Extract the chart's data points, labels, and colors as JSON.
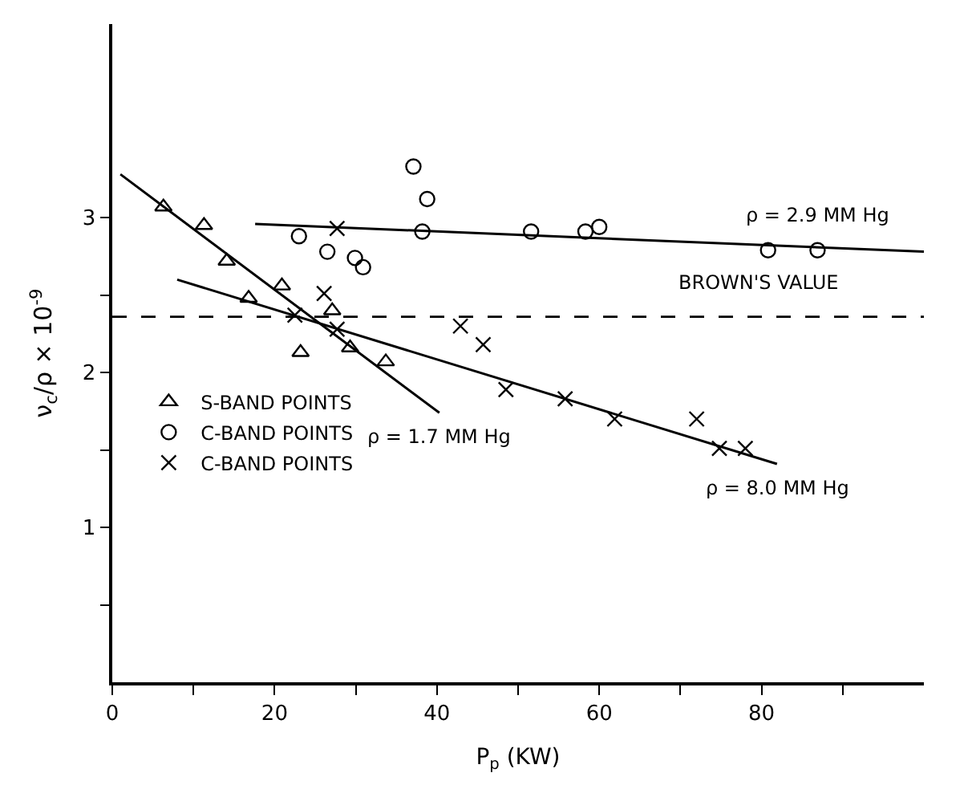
{
  "chart_data": {
    "type": "scatter",
    "xlabel": "P$_{p}$ (KW)",
    "ylabel": "ν$_{c}$/ρ × 10$^{-9}$",
    "xlim": [
      0,
      100
    ],
    "ylim": [
      0,
      4.25
    ],
    "xticks": [
      0,
      {
        "value": 10,
        "label": null
      },
      20,
      {
        "value": 30,
        "label": null
      },
      40,
      {
        "value": 50,
        "label": null
      },
      60,
      {
        "value": 70,
        "label": null
      },
      80,
      {
        "value": 90,
        "label": null
      }
    ],
    "yticks": [
      {
        "value": 0.5,
        "label": null
      },
      1,
      {
        "value": 1.5,
        "label": null
      },
      2,
      {
        "value": 2.5,
        "label": null
      },
      3
    ],
    "legend": "left",
    "series": [
      {
        "name": "S-BAND POINTS",
        "color": "#000000",
        "marker": "triangle",
        "x": [
          6.3,
          11.3,
          14.1,
          16.8,
          20.9,
          23.2,
          27.1,
          29.3,
          33.7
        ],
        "values": [
          3.07,
          2.95,
          2.72,
          2.48,
          2.56,
          2.13,
          2.4,
          2.16,
          2.07
        ]
      },
      {
        "name": "C-BAND POINTS",
        "color": "#000000",
        "marker": "circle",
        "x": [
          37.1,
          38.8,
          23.0,
          26.5,
          29.9,
          30.9,
          38.2,
          51.6,
          58.3,
          60.0,
          80.8,
          86.9
        ],
        "values": [
          3.33,
          3.12,
          2.88,
          2.78,
          2.74,
          2.68,
          2.91,
          2.91,
          2.91,
          2.94,
          2.79,
          2.79
        ]
      },
      {
        "name": "C-BAND POINTS",
        "color": "#000000",
        "marker": "cross",
        "x": [
          27.7,
          26.1,
          22.5,
          27.7,
          42.9,
          45.7,
          48.5,
          55.8,
          61.9,
          72.0,
          74.8,
          78.0
        ],
        "values": [
          2.93,
          2.51,
          2.37,
          2.28,
          2.3,
          2.18,
          1.89,
          1.83,
          1.7,
          1.7,
          1.51,
          1.51
        ]
      },
      {
        "type": "line",
        "name": "ρ = 1.7 MM Hg",
        "color": "#000000",
        "marker": "none",
        "line_style": "solid",
        "x": [
          1.0,
          40.3
        ],
        "values": [
          3.28,
          1.74
        ]
      },
      {
        "type": "line",
        "name": "ρ = 8.0 MM Hg",
        "color": "#000000",
        "marker": "none",
        "line_style": "solid",
        "x": [
          8.0,
          81.9
        ],
        "values": [
          2.6,
          1.41
        ]
      },
      {
        "type": "line",
        "name": "ρ = 2.9 MM Hg",
        "color": "#000000",
        "marker": "none",
        "line_style": "solid",
        "x": [
          17.6,
          100
        ],
        "values": [
          2.96,
          2.78
        ]
      }
    ],
    "ref_lines": [
      {
        "axis": "y",
        "value": 2.36,
        "label": "BROWN'S VALUE",
        "color": "#000000",
        "line_style": "dashed"
      }
    ]
  }
}
